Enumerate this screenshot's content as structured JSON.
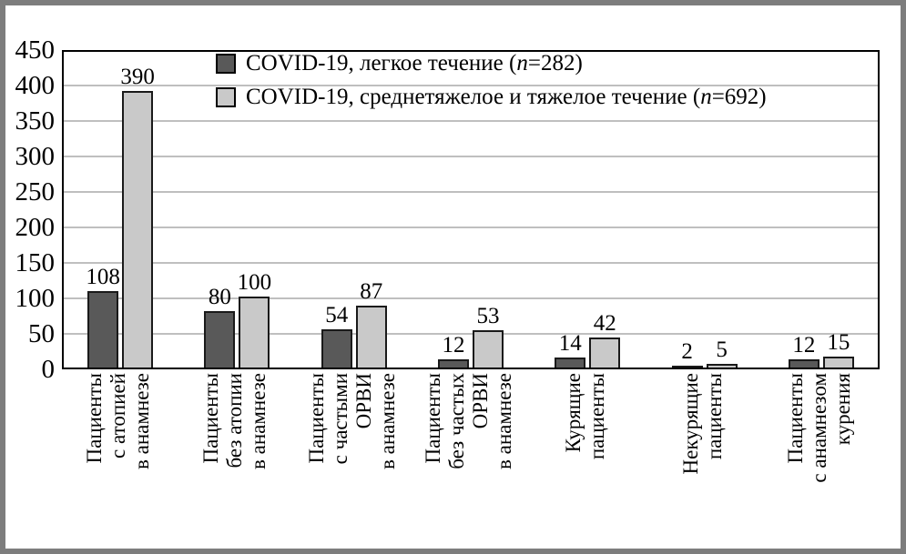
{
  "chart_data": {
    "type": "bar",
    "title": "",
    "xlabel": "",
    "ylabel": "",
    "ylim": [
      0,
      450
    ],
    "ytick_step": 50,
    "yticks": [
      0,
      50,
      100,
      150,
      200,
      250,
      300,
      350,
      400,
      450
    ],
    "grid": true,
    "legend_position": "top-center",
    "bar_value_labels": true,
    "categories": [
      [
        "Пациенты",
        "с атопией",
        "в анамнезе"
      ],
      [
        "Пациенты",
        "без атопии",
        "в анамнезе"
      ],
      [
        "Пациенты",
        "с частыми",
        "ОРВИ",
        "в анамнезе"
      ],
      [
        "Пациенты",
        "без частых",
        "ОРВИ",
        "в анамнезе"
      ],
      [
        "Курящие",
        "пациенты"
      ],
      [
        "Некурящие",
        "пациенты"
      ],
      [
        "Пациенты",
        "с анамнезом",
        "курения"
      ]
    ],
    "series": [
      {
        "name": "COVID-19, легкое течение (n=282)",
        "label_before": "COVID-19, легкое течение (",
        "label_n": "n",
        "label_after": "=282)",
        "color": "#595959",
        "values": [
          108,
          80,
          54,
          12,
          14,
          2,
          12
        ]
      },
      {
        "name": "COVID-19, среднетяжелое и тяжелое течение (n=692)",
        "label_before": "COVID-19, среднетяжелое и тяжелое течение (",
        "label_n": "n",
        "label_after": "=692)",
        "color": "#c9c9c9",
        "values": [
          390,
          100,
          87,
          53,
          42,
          5,
          15
        ]
      }
    ]
  },
  "colors": {
    "series_light_course": "#595959",
    "series_severe_course": "#c9c9c9",
    "gridline": "#bfbfbf",
    "plot_border": "#000000",
    "bar_border": "#1a1a1a",
    "frame_border": "#7d7d7d",
    "background": "#ffffff"
  }
}
